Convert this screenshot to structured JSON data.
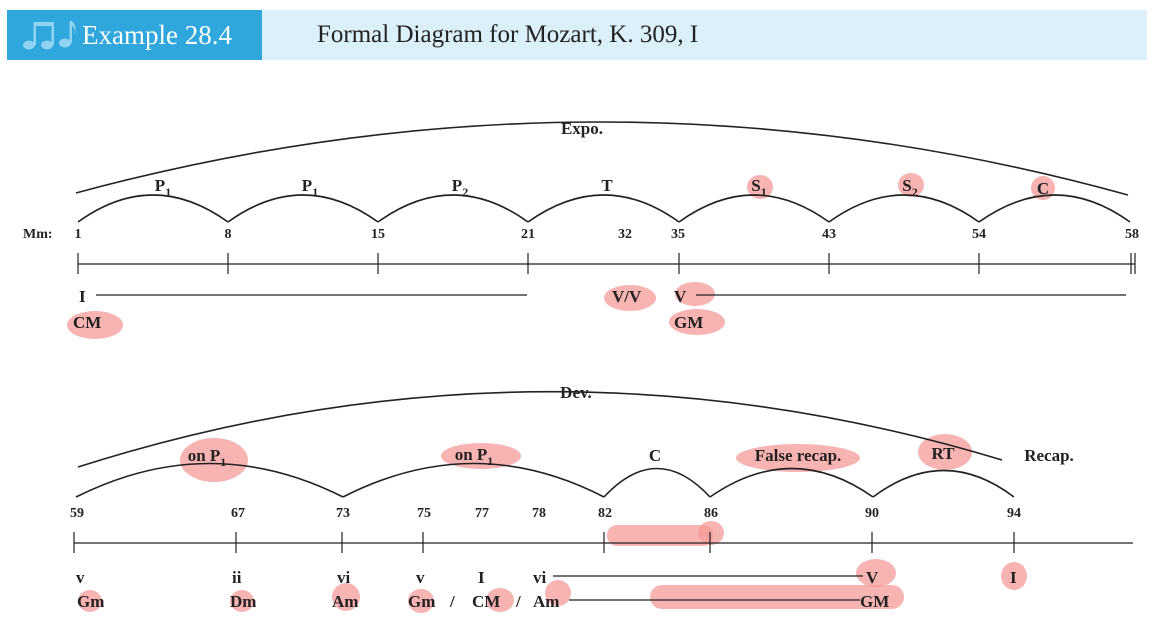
{
  "header": {
    "title": "Example 28.4",
    "subtitle": "Formal Diagram for Mozart, K. 309, I",
    "icon": "music-notes-icon",
    "tab_color": "#2fa7dc",
    "band_color": "#dcf0fa"
  },
  "highlight_color": "#f59a9a",
  "exposition": {
    "section_label": "Expo.",
    "mm_label": "Mm:",
    "measures": [
      "1",
      "8",
      "15",
      "21",
      "32",
      "35",
      "43",
      "54",
      "58"
    ],
    "sections": [
      {
        "base": "P",
        "sub": "1"
      },
      {
        "base": "P",
        "sub": "1"
      },
      {
        "base": "P",
        "sub": "2"
      },
      {
        "base": "T",
        "sub": ""
      },
      {
        "base": "S",
        "sub": "1"
      },
      {
        "base": "S",
        "sub": "2"
      },
      {
        "base": "C",
        "sub": ""
      }
    ],
    "harmony": [
      {
        "roman": "I",
        "key": "CM"
      },
      {
        "roman": "V/V",
        "key": ""
      },
      {
        "roman": "V",
        "key": "GM"
      }
    ]
  },
  "development": {
    "section_label": "Dev.",
    "recap_label": "Recap.",
    "measures": [
      "59",
      "67",
      "73",
      "75",
      "77",
      "78",
      "82",
      "86",
      "90",
      "94"
    ],
    "sections": [
      {
        "base": "on P",
        "sub": "1"
      },
      {
        "base": "on P",
        "sub": "1"
      },
      {
        "base": "C",
        "sub": ""
      },
      {
        "base": "False recap.",
        "sub": ""
      },
      {
        "base": "RT",
        "sub": ""
      }
    ],
    "harmony": [
      {
        "roman": "v",
        "key": "Gm"
      },
      {
        "roman": "ii",
        "key": "Dm"
      },
      {
        "roman": "vi",
        "key": "Am"
      },
      {
        "roman": "v",
        "key": "Gm"
      },
      {
        "roman": "I",
        "key": "CM"
      },
      {
        "roman": "vi",
        "key": "Am"
      },
      {
        "roman": "V",
        "key": "GM"
      },
      {
        "roman": "I",
        "key": ""
      }
    ],
    "separator": "/"
  }
}
